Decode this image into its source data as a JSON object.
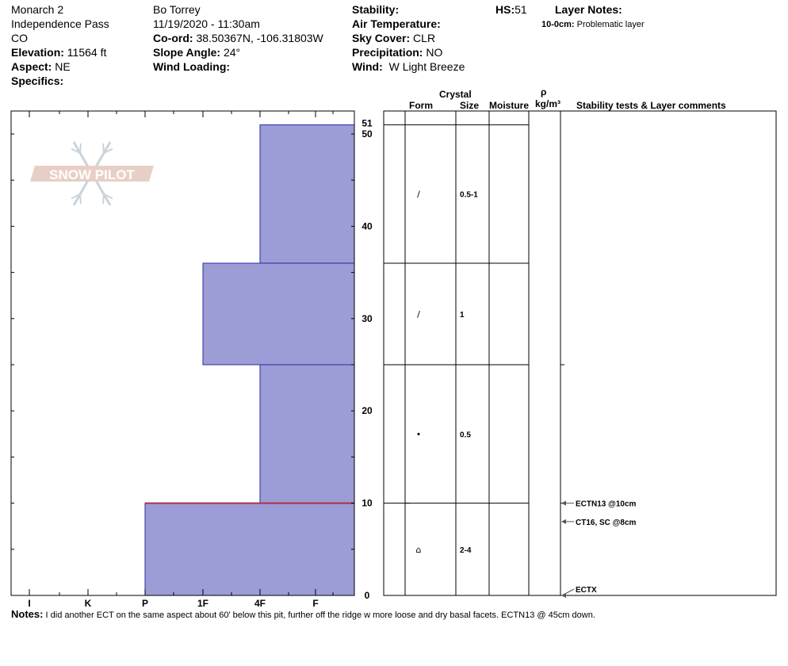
{
  "header": {
    "col1": {
      "name": "Monarch 2",
      "location": "Independence Pass",
      "state": "CO",
      "elevation_label": "Elevation:",
      "elevation_value": "11564 ft",
      "aspect_label": "Aspect:",
      "aspect_value": "NE",
      "specifics_label": "Specifics:"
    },
    "col2": {
      "observer": "Bo Torrey",
      "datetime": "11/19/2020 - 11:30am",
      "coord_label": "Co-ord:",
      "coord_value": "38.50367N, -106.31803W",
      "slope_label": "Slope Angle:",
      "slope_value": "24°",
      "wind_loading_label": "Wind Loading:"
    },
    "col3": {
      "stability_label": "Stability:",
      "air_temp_label": "Air Temperature:",
      "sky_label": "Sky Cover:",
      "sky_value": "CLR",
      "precip_label": "Precipitation:",
      "precip_value": "NO",
      "wind_label": "Wind:",
      "wind_value": "W Light Breeze"
    },
    "hs_label": "HS:",
    "hs_value": "51",
    "layer_notes_label": "Layer Notes:",
    "layer_note_depth": "10-0cm:",
    "layer_note_text": "Problematic layer"
  },
  "logo_text": "SNOW PILOT",
  "table_headers": {
    "crystal": "Crystal",
    "form": "Form",
    "size": "Size",
    "moisture": "Moisture",
    "rho": "ρ",
    "density_unit": "kg/m³",
    "comments": "Stability tests & Layer comments"
  },
  "notes_label": "Notes:",
  "notes_text": "I did another ECT on the same aspect about 60' below this pit, further off the ridge w more loose and dry basal facets. ECTN13 @ 45cm down.",
  "colors": {
    "layer_fill": "#9c9cd6",
    "layer_stroke": "#2a2aa8",
    "weak_layer": "#b0304a",
    "logo": "#e8cfc6"
  },
  "chart_data": {
    "type": "bar",
    "hardness_categories": [
      "I",
      "K",
      "P",
      "1F",
      "4F",
      "F"
    ],
    "height_range_cm": [
      0,
      51
    ],
    "height_ticks": [
      0,
      10,
      20,
      30,
      40,
      50
    ],
    "total_height": "51",
    "layers": [
      {
        "top": 51,
        "bottom": 36,
        "hardness": "4F",
        "form": "/",
        "size": "0.5-1"
      },
      {
        "top": 36,
        "bottom": 25,
        "hardness": "1F",
        "form": "/",
        "size": "1"
      },
      {
        "top": 25,
        "bottom": 10,
        "hardness": "4F",
        "form": "•",
        "size": "0.5"
      },
      {
        "top": 10,
        "bottom": 0,
        "hardness": "P",
        "form": "⌂",
        "size": "2-4"
      }
    ],
    "tests": [
      {
        "depth": 10,
        "label": "ECTN13 @10cm"
      },
      {
        "depth": 8,
        "label": "CT16, SC @8cm"
      },
      {
        "depth": 0,
        "label": "ECTX"
      }
    ]
  }
}
